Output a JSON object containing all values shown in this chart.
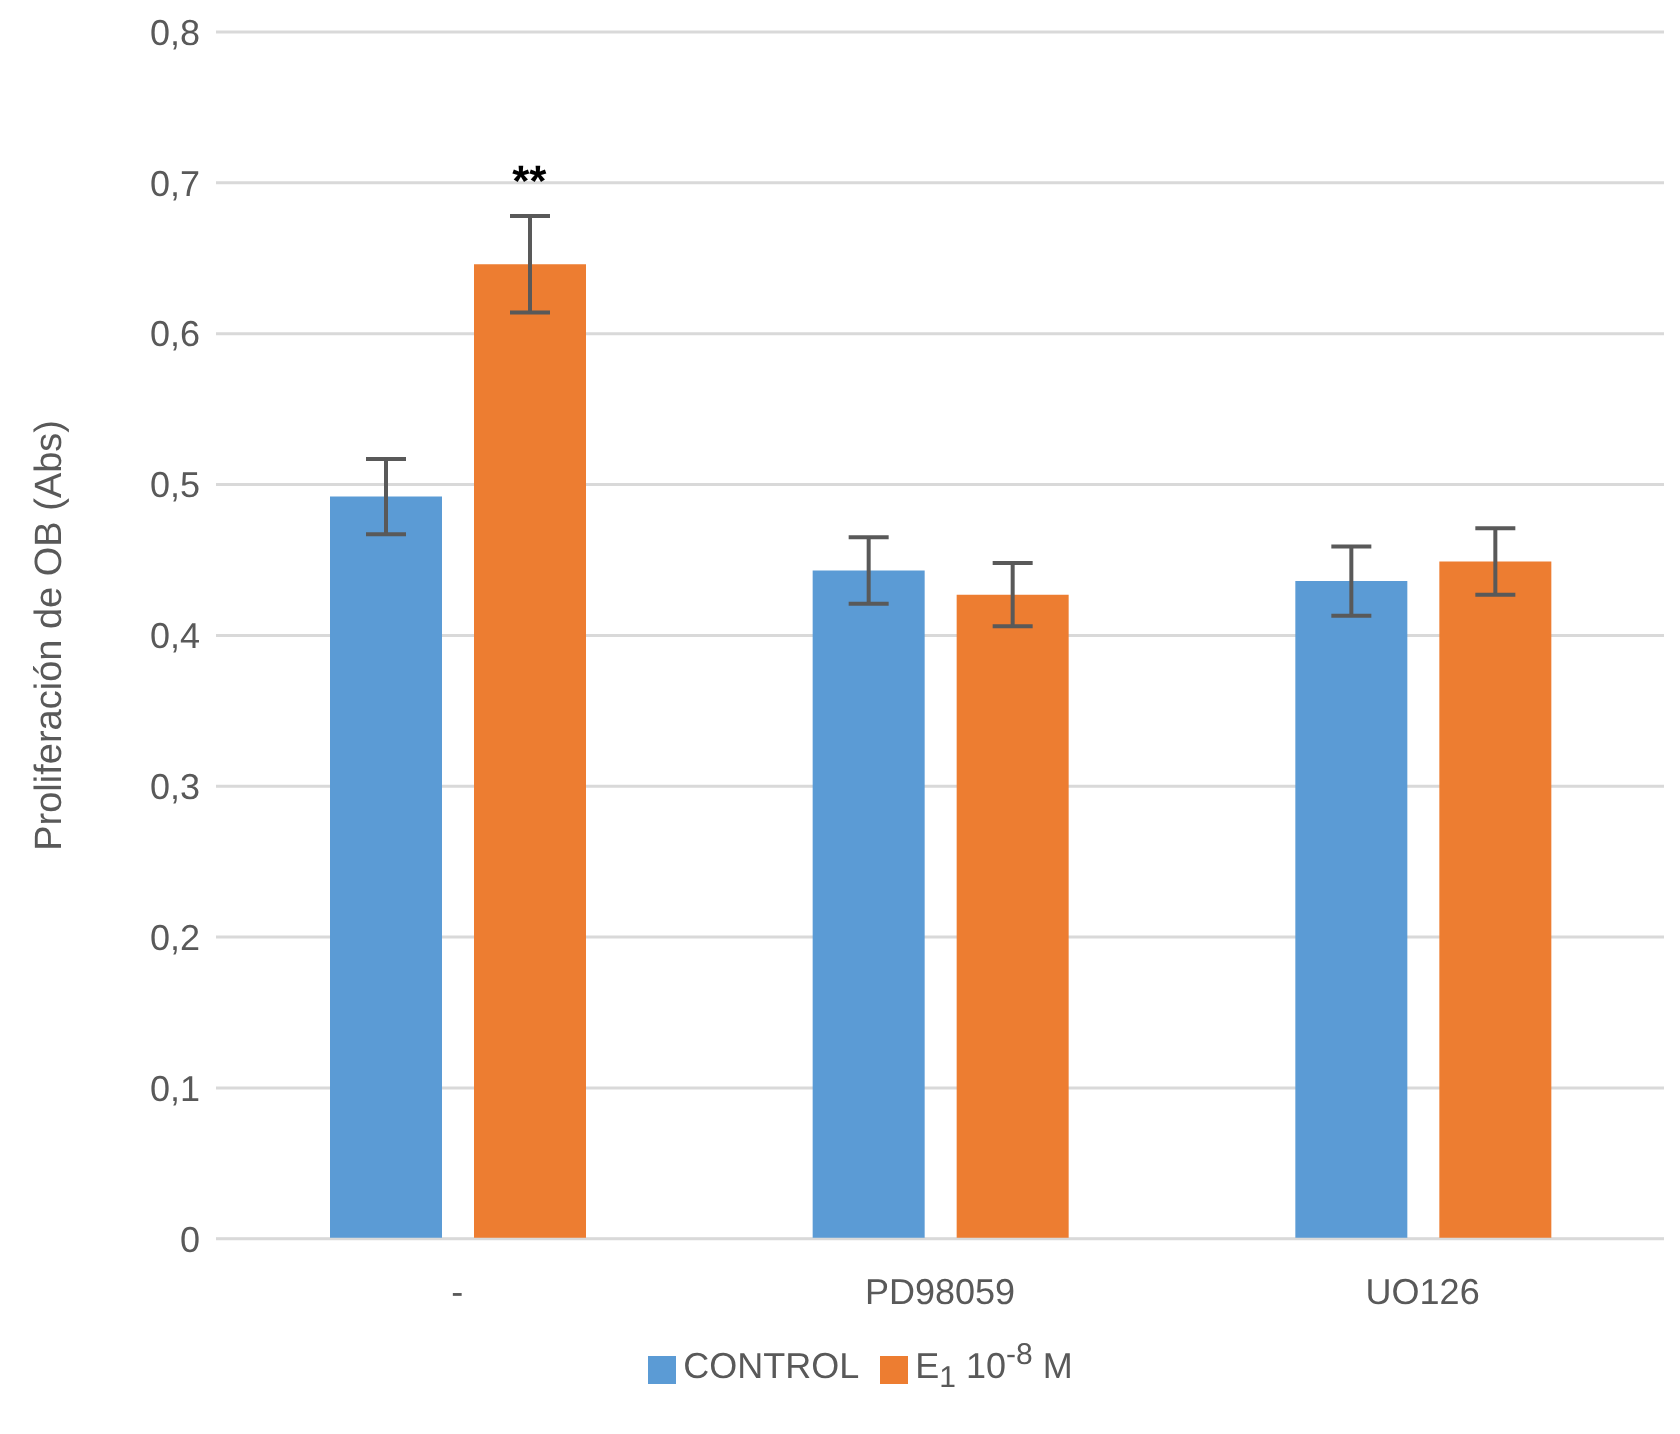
{
  "chart_data": {
    "type": "bar",
    "ylabel": "Proliferación de OB (Abs)",
    "categories": [
      "-",
      "PD98059",
      "UO126"
    ],
    "series": [
      {
        "name": "CONTROL",
        "color": "#5b9bd5",
        "values": [
          0.492,
          0.443,
          0.436
        ],
        "errors": [
          0.025,
          0.022,
          0.023
        ]
      },
      {
        "name": "E$_{1}$ 10$^{-8}$ M",
        "color": "#ed7d31",
        "values": [
          0.646,
          0.427,
          0.449
        ],
        "errors": [
          0.032,
          0.021,
          0.022
        ]
      }
    ],
    "ylim": [
      0,
      0.8
    ],
    "yticks": [
      {
        "value": 0,
        "label": "0"
      },
      {
        "value": 0.1,
        "label": "0,1"
      },
      {
        "value": 0.2,
        "label": "0,2"
      },
      {
        "value": 0.3,
        "label": "0,3"
      },
      {
        "value": 0.4,
        "label": "0,4"
      },
      {
        "value": 0.5,
        "label": "0,5"
      },
      {
        "value": 0.6,
        "label": "0,6"
      },
      {
        "value": 0.7,
        "label": "0,7"
      },
      {
        "value": 0.8,
        "label": "0,8"
      }
    ],
    "grid": "y",
    "legend": "bottom",
    "annotations": [
      "**"
    ]
  }
}
